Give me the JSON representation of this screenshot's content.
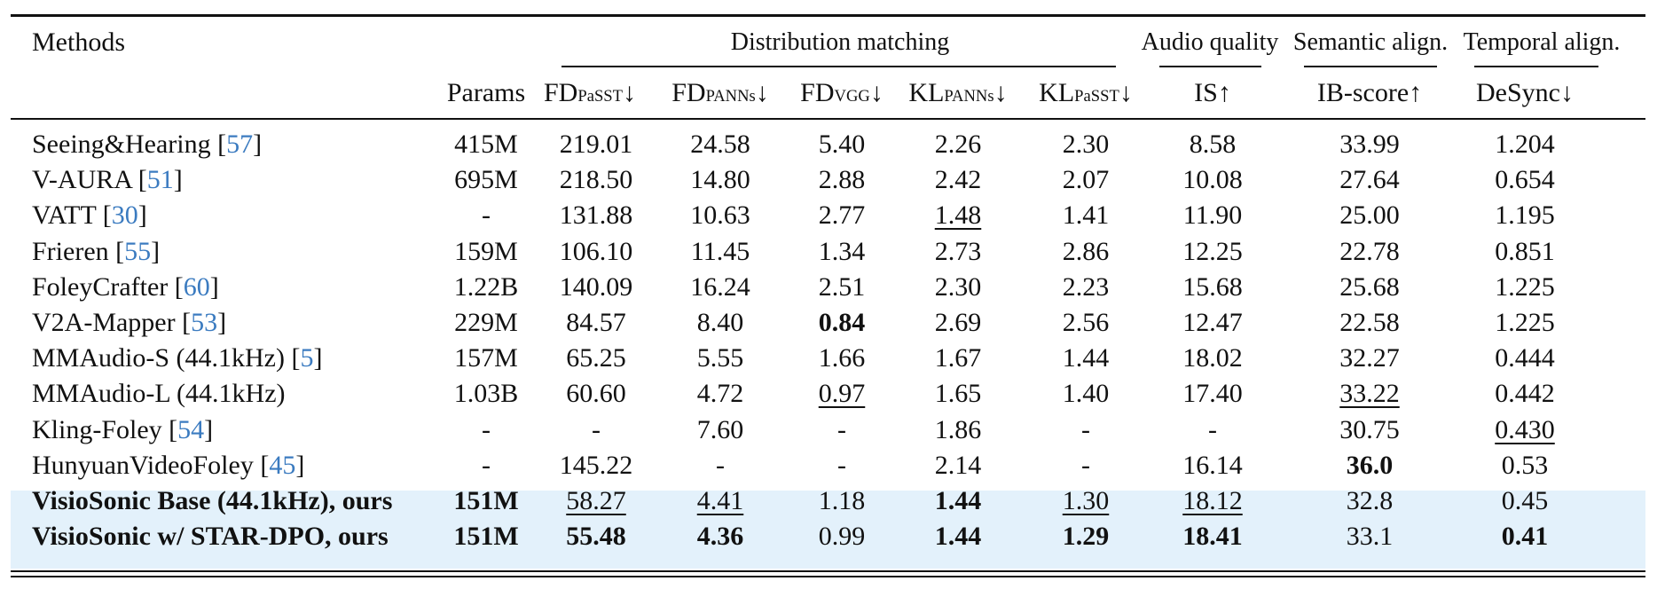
{
  "header": {
    "methods": "Methods",
    "groups": {
      "distribution": "Distribution matching",
      "audio": "Audio quality",
      "semantic": "Semantic align.",
      "temporal": "Temporal align."
    },
    "columns": {
      "params": "Params",
      "fd_passt": {
        "main": "FD",
        "sub": "PaSST",
        "arrow": "↓"
      },
      "fd_panns": {
        "main": "FD",
        "sub": "PANNs",
        "arrow": "↓"
      },
      "fd_vgg": {
        "main": "FD",
        "sub": "VGG",
        "arrow": "↓"
      },
      "kl_panns": {
        "main": "KL",
        "sub": "PANNs",
        "arrow": "↓"
      },
      "kl_passt": {
        "main": "KL",
        "sub": "PaSST",
        "arrow": "↓"
      },
      "is": "IS↑",
      "ib": "IB-score↑",
      "desync": "DeSync↓"
    }
  },
  "rows": [
    {
      "name": "Seeing&Hearing",
      "cite": "57",
      "cells": [
        "415M",
        "219.01",
        "24.58",
        "5.40",
        "2.26",
        "2.30",
        "8.58",
        "33.99",
        "1.204"
      ]
    },
    {
      "name": "V-AURA",
      "cite": "51",
      "cells": [
        "695M",
        "218.50",
        "14.80",
        "2.88",
        "2.42",
        "2.07",
        "10.08",
        "27.64",
        "0.654"
      ]
    },
    {
      "name": "VATT",
      "cite": "30",
      "cells": [
        "-",
        "131.88",
        "10.63",
        "2.77",
        "1.48",
        "1.41",
        "11.90",
        "25.00",
        "1.195"
      ]
    },
    {
      "name": "Frieren",
      "cite": "55",
      "cells": [
        "159M",
        "106.10",
        "11.45",
        "1.34",
        "2.73",
        "2.86",
        "12.25",
        "22.78",
        "0.851"
      ]
    },
    {
      "name": "FoleyCrafter",
      "cite": "60",
      "cells": [
        "1.22B",
        "140.09",
        "16.24",
        "2.51",
        "2.30",
        "2.23",
        "15.68",
        "25.68",
        "1.225"
      ]
    },
    {
      "name": "V2A-Mapper",
      "cite": "53",
      "cells": [
        "229M",
        "84.57",
        "8.40",
        "0.84",
        "2.69",
        "2.56",
        "12.47",
        "22.58",
        "1.225"
      ]
    },
    {
      "name": "MMAudio-S (44.1kHz)",
      "cite": "5",
      "cells": [
        "157M",
        "65.25",
        "5.55",
        "1.66",
        "1.67",
        "1.44",
        "18.02",
        "32.27",
        "0.444"
      ]
    },
    {
      "name": "MMAudio-L (44.1kHz)",
      "cite": "",
      "cells": [
        "1.03B",
        "60.60",
        "4.72",
        "0.97",
        "1.65",
        "1.40",
        "17.40",
        "33.22",
        "0.442"
      ]
    },
    {
      "name": "Kling-Foley",
      "cite": "54",
      "cells": [
        "-",
        "-",
        "7.60",
        "-",
        "1.86",
        "-",
        "-",
        "30.75",
        "0.430"
      ]
    },
    {
      "name": "HunyuanVideoFoley",
      "cite": "45",
      "cells": [
        "-",
        "145.22",
        "-",
        "-",
        "2.14",
        "-",
        "16.14",
        "36.0",
        "0.53"
      ]
    },
    {
      "name": "VisioSonic Base (44.1kHz), ours",
      "cite": "",
      "cells": [
        "151M",
        "58.27",
        "4.41",
        "1.18",
        "1.44",
        "1.30",
        "18.12",
        "32.8",
        "0.45"
      ]
    },
    {
      "name": "VisioSonic w/ STAR-DPO, ours",
      "cite": "",
      "cells": [
        "151M",
        "55.48",
        "4.36",
        "0.99",
        "1.44",
        "1.29",
        "18.41",
        "33.1",
        "0.41"
      ]
    }
  ],
  "highlight_color": "#e3f1fb",
  "cite_color": "#3b7bc0"
}
